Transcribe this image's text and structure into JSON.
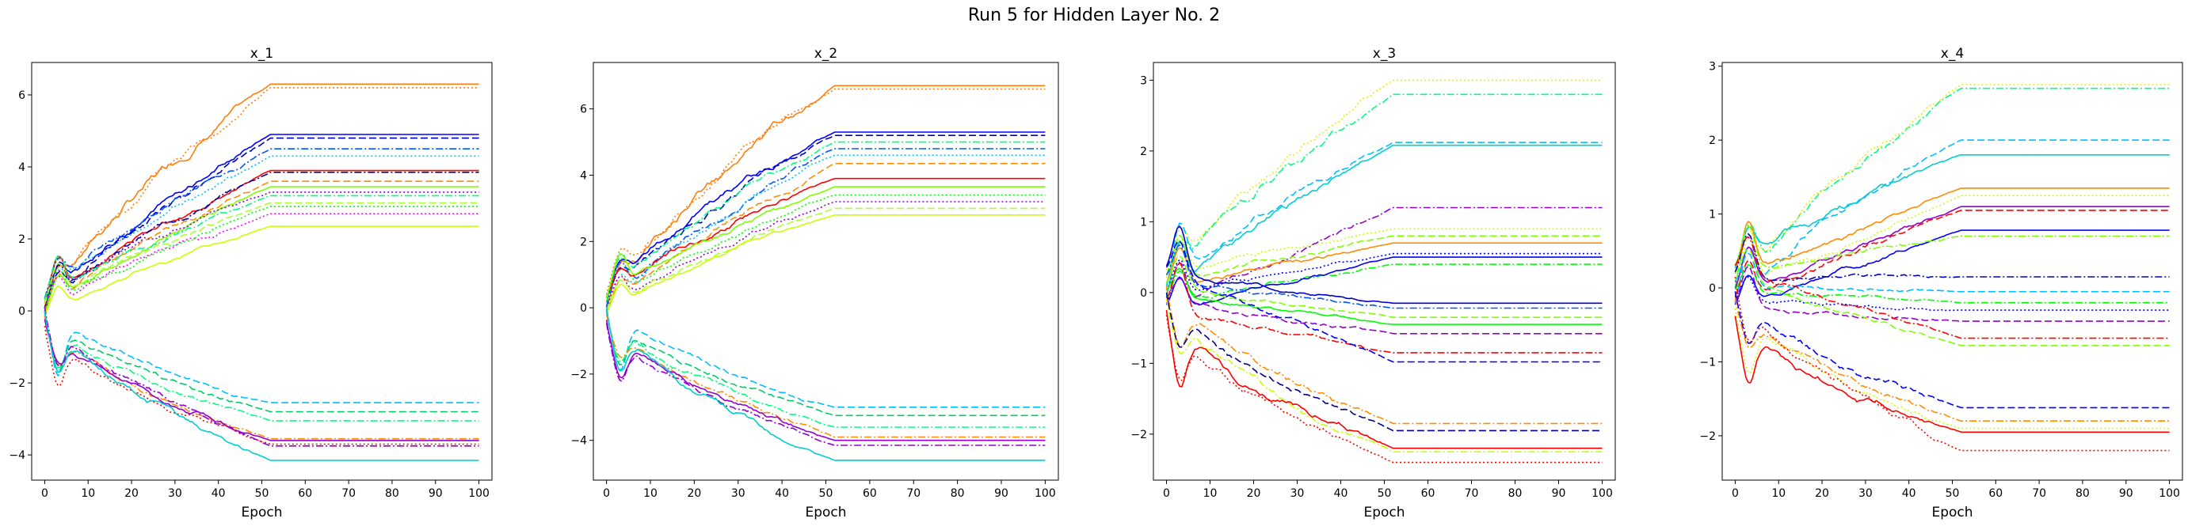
{
  "figure": {
    "suptitle": "Run 5 for Hidden Layer No. 2"
  },
  "chart_data": [
    {
      "type": "line",
      "title": "x_1",
      "xlabel": "Epoch",
      "ylabel": "",
      "xlim": [
        -3,
        103
      ],
      "ylim": [
        -4.7,
        6.9
      ],
      "xticks": [
        0,
        10,
        20,
        30,
        40,
        50,
        60,
        70,
        80,
        90,
        100
      ],
      "yticks": [
        -4,
        -2,
        0,
        2,
        4,
        6
      ],
      "curves": [
        {
          "color": "#ff7f0e",
          "dash": "solid",
          "final": 6.3,
          "shape": "grow",
          "amp": 0.7
        },
        {
          "color": "#ff7f0e",
          "dash": "dot",
          "final": 6.2,
          "shape": "grow",
          "amp": 0.7
        },
        {
          "color": "#0000ff",
          "dash": "solid",
          "final": 4.9,
          "shape": "grow",
          "amp": 0.8
        },
        {
          "color": "#0000cc",
          "dash": "dashed",
          "final": 4.8,
          "shape": "grow",
          "amp": 0.8
        },
        {
          "color": "#0055ff",
          "dash": "dashdot",
          "final": 4.5,
          "shape": "grow",
          "amp": 0.9
        },
        {
          "color": "#00bfff",
          "dash": "dot",
          "final": 4.3,
          "shape": "grow",
          "amp": 0.7
        },
        {
          "color": "#ff0000",
          "dash": "solid",
          "final": 3.9,
          "shape": "grow",
          "amp": 0.9
        },
        {
          "color": "#0000aa",
          "dash": "dashdot",
          "final": 3.85,
          "shape": "grow",
          "amp": 0.8
        },
        {
          "color": "#ff8c00",
          "dash": "dashed",
          "final": 3.6,
          "shape": "grow",
          "amp": 0.8
        },
        {
          "color": "#7fff00",
          "dash": "solid",
          "final": 3.45,
          "shape": "grow",
          "amp": 1.0
        },
        {
          "color": "#9400d3",
          "dash": "dot",
          "final": 3.3,
          "shape": "grow",
          "amp": 0.8
        },
        {
          "color": "#00ff7f",
          "dash": "dashdot",
          "final": 3.2,
          "shape": "grow",
          "amp": 0.9
        },
        {
          "color": "#adff2f",
          "dash": "dashed",
          "final": 3.0,
          "shape": "grow",
          "amp": 0.9
        },
        {
          "color": "#ff00ff",
          "dash": "dot",
          "final": 2.7,
          "shape": "grow",
          "amp": 0.8
        },
        {
          "color": "#00ff00",
          "dash": "dot",
          "final": 2.9,
          "shape": "grow",
          "amp": 1.2
        },
        {
          "color": "#ccff00",
          "dash": "solid",
          "final": 2.35,
          "shape": "grow",
          "amp": 1.0
        },
        {
          "color": "#00bfff",
          "dash": "dashed",
          "final": -2.55,
          "shape": "decay",
          "amp": 1.4
        },
        {
          "color": "#00cc66",
          "dash": "dashed",
          "final": -2.8,
          "shape": "decay",
          "amp": 1.3
        },
        {
          "color": "#00ff7f",
          "dash": "dashdot",
          "final": -3.05,
          "shape": "decay",
          "amp": 1.2
        },
        {
          "color": "#ff8c00",
          "dash": "dashdot",
          "final": -3.55,
          "shape": "decay",
          "amp": 1.0
        },
        {
          "color": "#9400d3",
          "dash": "solid",
          "final": -3.6,
          "shape": "decay",
          "amp": 1.0
        },
        {
          "color": "#ff0000",
          "dash": "dot",
          "final": -3.7,
          "shape": "decay",
          "amp": 1.1
        },
        {
          "color": "#9400d3",
          "dash": "dashdot",
          "final": -3.75,
          "shape": "decay",
          "amp": 1.1
        },
        {
          "color": "#00ced1",
          "dash": "solid",
          "final": -4.15,
          "shape": "decay",
          "amp": 1.3
        }
      ]
    },
    {
      "type": "line",
      "title": "x_2",
      "xlabel": "Epoch",
      "ylabel": "",
      "xlim": [
        -3,
        103
      ],
      "ylim": [
        -5.2,
        7.4
      ],
      "xticks": [
        0,
        10,
        20,
        30,
        40,
        50,
        60,
        70,
        80,
        90,
        100
      ],
      "yticks": [
        -4,
        -2,
        0,
        2,
        4,
        6
      ],
      "curves": [
        {
          "color": "#ff7f0e",
          "dash": "solid",
          "final": 6.7,
          "shape": "grow",
          "amp": 0.7
        },
        {
          "color": "#ff7f0e",
          "dash": "dot",
          "final": 6.6,
          "shape": "grow",
          "amp": 0.7
        },
        {
          "color": "#0000ff",
          "dash": "solid",
          "final": 5.3,
          "shape": "grow",
          "amp": 0.8
        },
        {
          "color": "#0000cc",
          "dash": "dashed",
          "final": 5.2,
          "shape": "grow",
          "amp": 0.8
        },
        {
          "color": "#00ff7f",
          "dash": "dashdot",
          "final": 5.0,
          "shape": "grow",
          "amp": 0.9
        },
        {
          "color": "#0055ff",
          "dash": "dashdot",
          "final": 4.8,
          "shape": "grow",
          "amp": 0.9
        },
        {
          "color": "#00bfff",
          "dash": "dot",
          "final": 4.6,
          "shape": "grow",
          "amp": 0.7
        },
        {
          "color": "#ff8c00",
          "dash": "dashed",
          "final": 4.35,
          "shape": "grow",
          "amp": 0.8
        },
        {
          "color": "#ff0000",
          "dash": "solid",
          "final": 3.9,
          "shape": "grow",
          "amp": 0.9
        },
        {
          "color": "#7fff00",
          "dash": "solid",
          "final": 3.65,
          "shape": "grow",
          "amp": 1.0
        },
        {
          "color": "#00ff00",
          "dash": "dot",
          "final": 3.4,
          "shape": "grow",
          "amp": 1.1
        },
        {
          "color": "#9400d3",
          "dash": "dot",
          "final": 3.2,
          "shape": "grow",
          "amp": 0.8
        },
        {
          "color": "#adff2f",
          "dash": "dashed",
          "final": 3.0,
          "shape": "grow",
          "amp": 0.9
        },
        {
          "color": "#ccff00",
          "dash": "solid",
          "final": 2.8,
          "shape": "grow",
          "amp": 1.0
        },
        {
          "color": "#00bfff",
          "dash": "dashed",
          "final": -3.0,
          "shape": "decay",
          "amp": 1.4
        },
        {
          "color": "#00cc66",
          "dash": "dashed",
          "final": -3.25,
          "shape": "decay",
          "amp": 1.3
        },
        {
          "color": "#00ff7f",
          "dash": "dashdot",
          "final": -3.6,
          "shape": "decay",
          "amp": 1.2
        },
        {
          "color": "#ff8c00",
          "dash": "dashdot",
          "final": -3.9,
          "shape": "decay",
          "amp": 1.0
        },
        {
          "color": "#9400d3",
          "dash": "solid",
          "final": -4.0,
          "shape": "decay",
          "amp": 1.0
        },
        {
          "color": "#9400d3",
          "dash": "dashdot",
          "final": -4.15,
          "shape": "decay",
          "amp": 1.1
        },
        {
          "color": "#00ced1",
          "dash": "solid",
          "final": -4.6,
          "shape": "decay",
          "amp": 1.3
        }
      ]
    },
    {
      "type": "line",
      "title": "x_3",
      "xlabel": "Epoch",
      "ylabel": "",
      "xlim": [
        -3,
        103
      ],
      "ylim": [
        -2.65,
        3.25
      ],
      "xticks": [
        0,
        10,
        20,
        30,
        40,
        50,
        60,
        70,
        80,
        90,
        100
      ],
      "yticks": [
        -2,
        -1,
        0,
        1,
        2,
        3
      ],
      "curves": [
        {
          "color": "#eeee00",
          "dash": "dot",
          "final": 3.0,
          "shape": "grow",
          "amp": 0.6
        },
        {
          "color": "#00ff7f",
          "dash": "dashdot",
          "final": 2.8,
          "shape": "grow",
          "amp": 0.6
        },
        {
          "color": "#00bfff",
          "dash": "dashed",
          "final": 2.12,
          "shape": "grow",
          "amp": 0.7
        },
        {
          "color": "#00ced1",
          "dash": "solid",
          "final": 2.08,
          "shape": "grow",
          "amp": 0.6
        },
        {
          "color": "#9400d3",
          "dash": "dashdot",
          "final": 1.2,
          "shape": "mid",
          "amp": 0.7
        },
        {
          "color": "#ccff00",
          "dash": "dot",
          "final": 0.9,
          "shape": "mid",
          "amp": 0.6
        },
        {
          "color": "#7fff00",
          "dash": "dashed",
          "final": 0.8,
          "shape": "mid",
          "amp": 0.5
        },
        {
          "color": "#ff8c00",
          "dash": "solid",
          "final": 0.7,
          "shape": "mid",
          "amp": 0.5
        },
        {
          "color": "#0000ff",
          "dash": "dot",
          "final": 0.55,
          "shape": "mid",
          "amp": 0.5
        },
        {
          "color": "#00ff00",
          "dash": "dashdot",
          "final": 0.4,
          "shape": "mid",
          "amp": 0.5
        },
        {
          "color": "#0000ff",
          "dash": "solid",
          "final": 0.5,
          "shape": "mid",
          "amp": 0.6
        },
        {
          "color": "#0000cc",
          "dash": "solid",
          "final": -0.15,
          "shape": "mid",
          "amp": 0.6
        },
        {
          "color": "#0055ff",
          "dash": "dashdot",
          "final": -0.22,
          "shape": "mid",
          "amp": 0.5
        },
        {
          "color": "#7fff00",
          "dash": "dashed",
          "final": -0.35,
          "shape": "mid",
          "amp": 0.5
        },
        {
          "color": "#00ff00",
          "dash": "solid",
          "final": -0.45,
          "shape": "mid",
          "amp": 0.5
        },
        {
          "color": "#9400d3",
          "dash": "dashed",
          "final": -0.58,
          "shape": "mid",
          "amp": 0.5
        },
        {
          "color": "#ff0000",
          "dash": "dashdot",
          "final": -0.85,
          "shape": "mid",
          "amp": 0.6
        },
        {
          "color": "#0000ff",
          "dash": "dashed",
          "final": -0.98,
          "shape": "mid",
          "amp": 0.5
        },
        {
          "color": "#ff8c00",
          "dash": "dashdot",
          "final": -1.85,
          "shape": "decay",
          "amp": 0.6
        },
        {
          "color": "#00008b",
          "dash": "dashed",
          "final": -1.95,
          "shape": "decay",
          "amp": 0.6
        },
        {
          "color": "#ccff00",
          "dash": "dashdot",
          "final": -2.25,
          "shape": "decay",
          "amp": 0.6
        },
        {
          "color": "#ff0000",
          "dash": "solid",
          "final": -2.2,
          "shape": "decay",
          "amp": 0.7
        },
        {
          "color": "#ff0000",
          "dash": "dot",
          "final": -2.4,
          "shape": "decay",
          "amp": 0.6
        }
      ]
    },
    {
      "type": "line",
      "title": "x_4",
      "xlabel": "Epoch",
      "ylabel": "",
      "xlim": [
        -3,
        103
      ],
      "ylim": [
        -2.6,
        3.05
      ],
      "xticks": [
        0,
        10,
        20,
        30,
        40,
        50,
        60,
        70,
        80,
        90,
        100
      ],
      "yticks": [
        -2,
        -1,
        0,
        1,
        2,
        3
      ],
      "curves": [
        {
          "color": "#00ff7f",
          "dash": "dashdot",
          "final": 2.7,
          "shape": "grow",
          "amp": 0.6
        },
        {
          "color": "#eeee00",
          "dash": "dot",
          "final": 2.75,
          "shape": "grow",
          "amp": 0.6
        },
        {
          "color": "#00bfff",
          "dash": "dashed",
          "final": 2.0,
          "shape": "grow",
          "amp": 0.7
        },
        {
          "color": "#00ced1",
          "dash": "solid",
          "final": 1.8,
          "shape": "grow",
          "amp": 0.6
        },
        {
          "color": "#ff8c00",
          "dash": "solid",
          "final": 1.35,
          "shape": "mid",
          "amp": 0.6
        },
        {
          "color": "#ccff00",
          "dash": "dot",
          "final": 1.25,
          "shape": "mid",
          "amp": 0.6
        },
        {
          "color": "#9400d3",
          "dash": "solid",
          "final": 1.1,
          "shape": "mid",
          "amp": 0.6
        },
        {
          "color": "#ff0000",
          "dash": "dashed",
          "final": 1.05,
          "shape": "mid",
          "amp": 0.6
        },
        {
          "color": "#0000ff",
          "dash": "solid",
          "final": 0.78,
          "shape": "mid",
          "amp": 0.6
        },
        {
          "color": "#7fff00",
          "dash": "dashdot",
          "final": 0.7,
          "shape": "mid",
          "amp": 0.5
        },
        {
          "color": "#0000cc",
          "dash": "dashdot",
          "final": 0.15,
          "shape": "mid",
          "amp": 0.6
        },
        {
          "color": "#00bfff",
          "dash": "dashed",
          "final": -0.05,
          "shape": "mid",
          "amp": 0.5
        },
        {
          "color": "#00ff00",
          "dash": "dashdot",
          "final": -0.2,
          "shape": "mid",
          "amp": 0.5
        },
        {
          "color": "#0000ff",
          "dash": "dot",
          "final": -0.3,
          "shape": "mid",
          "amp": 0.5
        },
        {
          "color": "#9400d3",
          "dash": "dashed",
          "final": -0.45,
          "shape": "mid",
          "amp": 0.5
        },
        {
          "color": "#ff0000",
          "dash": "dashdot",
          "final": -0.68,
          "shape": "mid",
          "amp": 0.5
        },
        {
          "color": "#7fff00",
          "dash": "dashed",
          "final": -0.78,
          "shape": "mid",
          "amp": 0.5
        },
        {
          "color": "#0000ff",
          "dash": "dashed",
          "final": -1.62,
          "shape": "decay",
          "amp": 0.6
        },
        {
          "color": "#ff8c00",
          "dash": "dashdot",
          "final": -1.8,
          "shape": "decay",
          "amp": 0.6
        },
        {
          "color": "#ccff00",
          "dash": "dot",
          "final": -1.9,
          "shape": "decay",
          "amp": 0.6
        },
        {
          "color": "#ff0000",
          "dash": "solid",
          "final": -1.95,
          "shape": "decay",
          "amp": 0.7
        },
        {
          "color": "#ff0000",
          "dash": "dot",
          "final": -2.2,
          "shape": "decay",
          "amp": 0.6
        }
      ]
    }
  ]
}
